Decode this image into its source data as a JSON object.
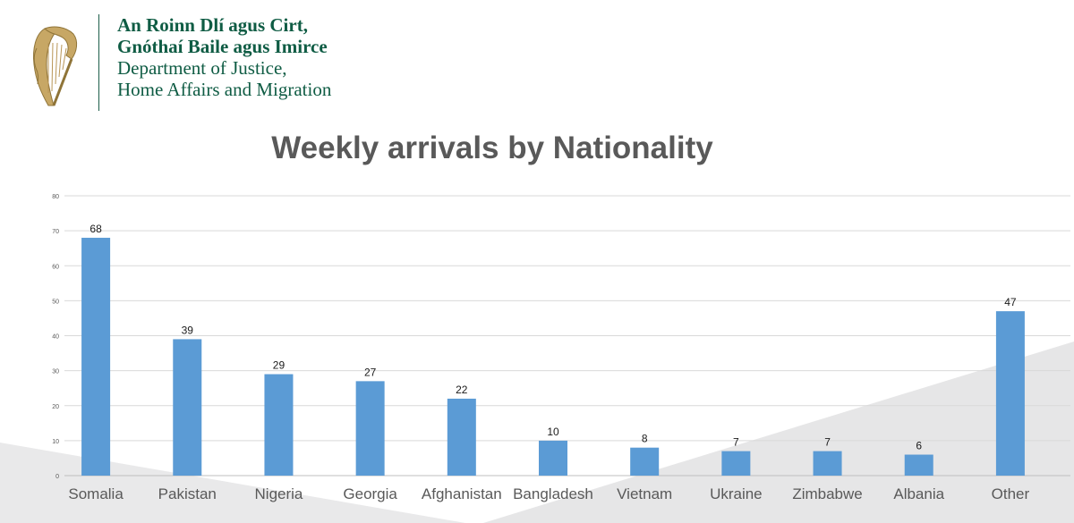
{
  "header": {
    "irish_line1": "An Roinn Dlí agus Cirt,",
    "irish_line2": "Gnóthaí Baile agus Imirce",
    "english_line1": "Department of Justice,",
    "english_line2": "Home Affairs and Migration"
  },
  "colors": {
    "bar": "#5b9bd5",
    "brand": "#0f5c44",
    "grid": "#d9d9d9",
    "text": "#595959"
  },
  "icons": {
    "logo": "harp-icon"
  },
  "chart_data": {
    "type": "bar",
    "title": "Weekly arrivals by Nationality",
    "categories": [
      "Somalia",
      "Pakistan",
      "Nigeria",
      "Georgia",
      "Afghanistan",
      "Bangladesh",
      "Vietnam",
      "Ukraine",
      "Zimbabwe",
      "Albania",
      "Other"
    ],
    "values": [
      68,
      39,
      29,
      27,
      22,
      10,
      8,
      7,
      7,
      6,
      47
    ],
    "ylim": [
      0,
      80
    ],
    "yticks": [
      0,
      10,
      20,
      30,
      40,
      50,
      60,
      70,
      80
    ],
    "grid": true,
    "xlabel": "",
    "ylabel": ""
  }
}
